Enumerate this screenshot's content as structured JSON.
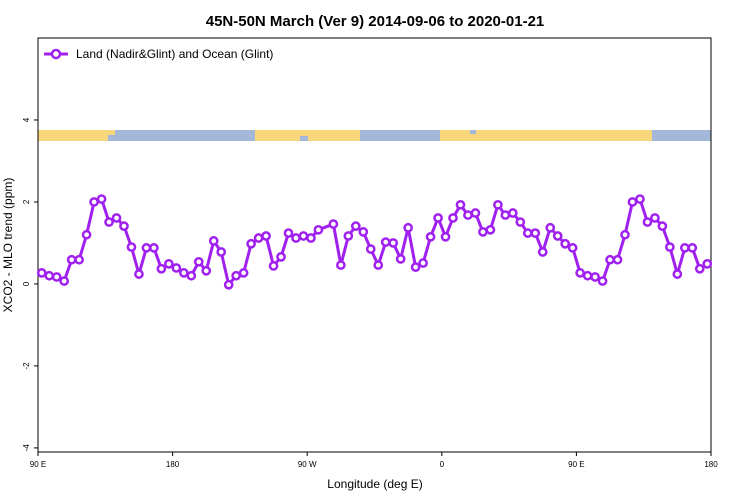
{
  "chart_data": {
    "type": "line",
    "title": "45N-50N March (Ver 9)   2014-09-06 to 2020-01-21",
    "x_label": "Longitude (deg E)",
    "y_label": "XCO2 - MLO trend (ppm)",
    "xlim": [
      90,
      540
    ],
    "xticks": [
      {
        "value": 90,
        "label": "90 E"
      },
      180,
      {
        "value": 270,
        "label": "90 W"
      },
      {
        "value": 360,
        "label": "0"
      },
      {
        "value": 450,
        "label": "90 E"
      },
      {
        "value": 540,
        "label": "180"
      }
    ],
    "ylim": [
      -4.1,
      6.0
    ],
    "yticks": [
      -4,
      -2,
      0,
      2,
      4
    ],
    "legend_position": "top-left",
    "x": [
      92.5,
      97.5,
      102.5,
      107.5,
      112.5,
      117.5,
      122.5,
      127.5,
      132.5,
      137.5,
      142.5,
      147.5,
      152.5,
      157.5,
      162.5,
      167.5,
      172.5,
      177.5,
      182.5,
      187.5,
      192.5,
      197.5,
      202.5,
      207.5,
      212.5,
      217.5,
      222.5,
      227.5,
      232.5,
      237.5,
      242.5,
      247.5,
      252.5,
      257.5,
      262.5,
      267.5,
      272.5,
      277.5,
      287.5,
      292.5,
      297.5,
      302.5,
      307.5,
      312.5,
      317.5,
      322.5,
      327.5,
      332.5,
      337.5,
      342.5,
      347.5,
      352.5,
      357.5,
      362.5,
      367.5,
      372.5,
      377.5,
      382.5,
      387.5,
      392.5,
      397.5,
      402.5,
      407.5,
      412.5,
      417.5,
      422.5,
      427.5,
      432.5,
      437.5,
      442.5,
      447.5,
      452.5,
      457.5,
      462.5,
      467.5,
      472.5,
      477.5,
      482.5,
      487.5,
      492.5,
      497.5,
      502.5,
      507.5,
      512.5,
      517.5,
      522.5,
      527.5,
      532.5,
      537.5
    ],
    "series": [
      {
        "name": "Land (Nadir&Glint) and Ocean (Glint)",
        "color": "#a020f0",
        "values": [
          0.27,
          0.2,
          0.17,
          0.07,
          0.59,
          0.59,
          1.2,
          2.0,
          2.07,
          1.51,
          1.61,
          1.41,
          0.9,
          0.24,
          0.88,
          0.88,
          0.37,
          0.49,
          0.39,
          0.27,
          0.2,
          0.54,
          0.32,
          1.05,
          0.78,
          -0.02,
          0.2,
          0.27,
          0.98,
          1.12,
          1.17,
          0.44,
          0.66,
          1.24,
          1.12,
          1.17,
          1.12,
          1.32,
          1.46,
          0.46,
          1.17,
          1.41,
          1.27,
          0.85,
          0.46,
          1.02,
          1.0,
          0.61,
          1.37,
          0.41,
          0.51,
          1.15,
          1.61,
          1.15,
          1.61,
          1.93,
          1.68,
          1.73,
          1.27,
          1.32,
          1.93,
          1.68,
          1.73,
          1.51,
          1.24,
          1.24,
          0.78,
          1.37,
          1.17,
          0.98,
          0.88,
          0.27,
          0.2,
          0.17,
          0.07,
          0.59,
          0.59,
          1.2,
          2.0,
          2.07,
          1.51,
          1.61,
          1.41,
          0.9,
          0.24,
          0.88,
          0.88,
          0.37,
          0.49
        ]
      }
    ]
  }
}
